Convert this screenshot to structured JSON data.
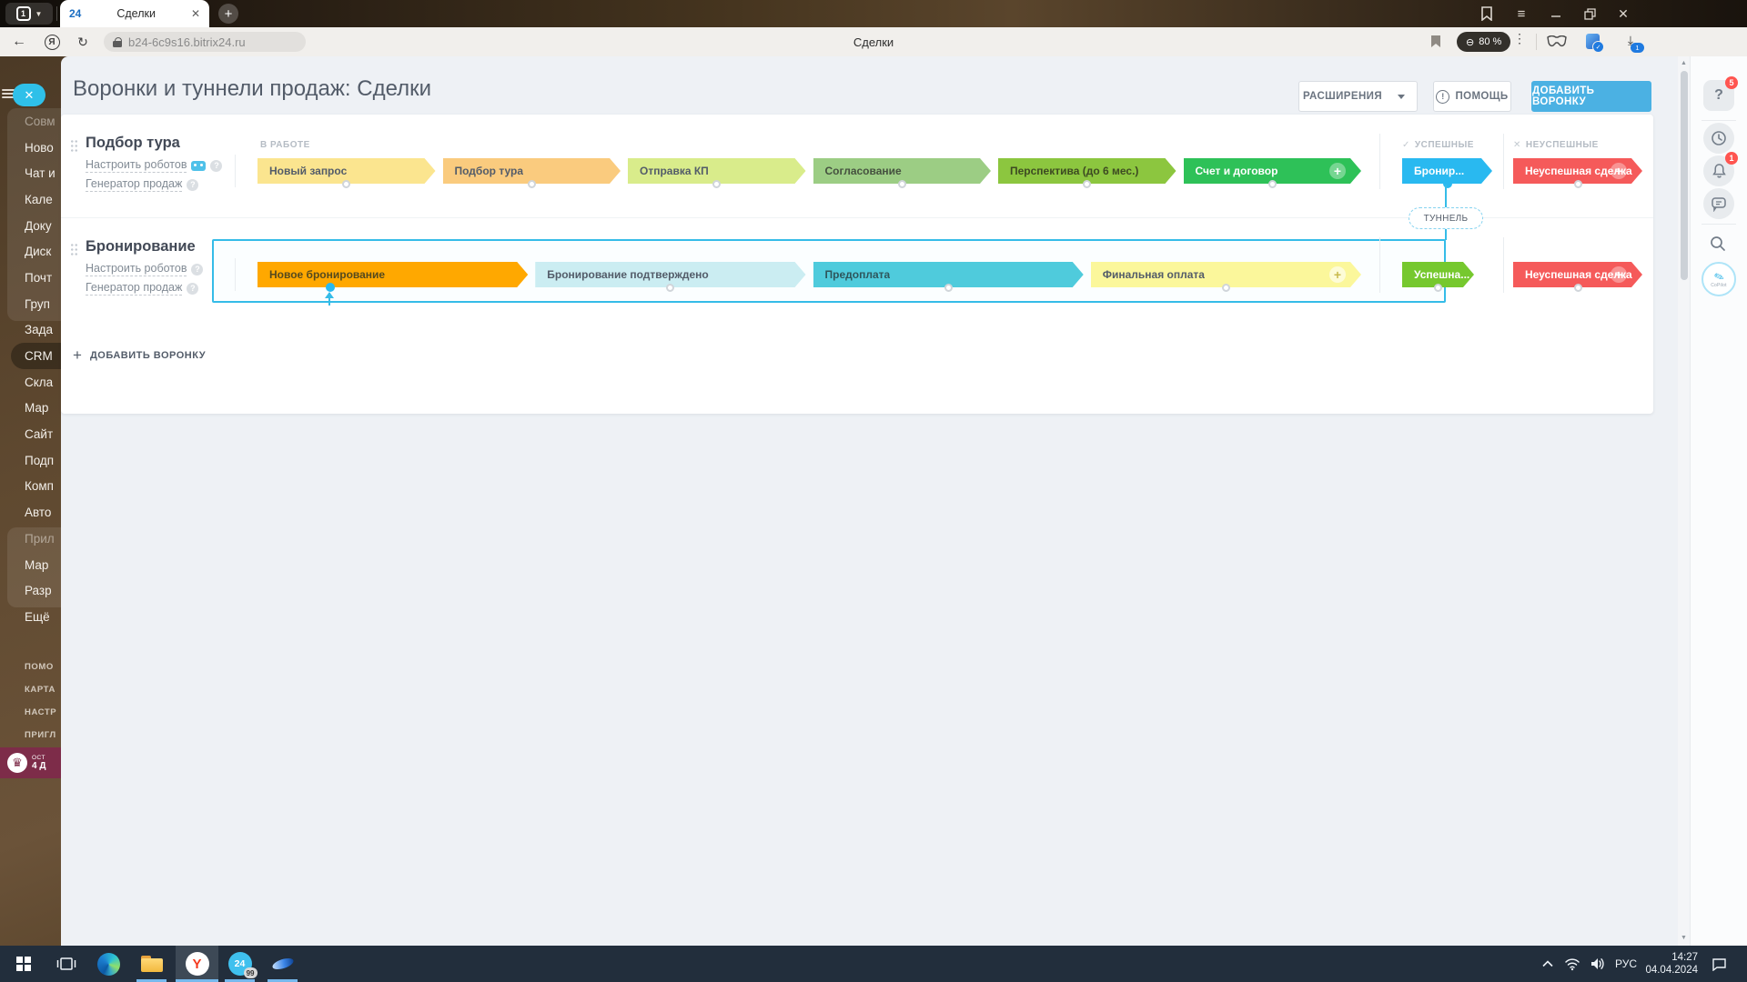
{
  "colors": {
    "accent": "#4BB1E3",
    "tunnel": "#35BCE8"
  },
  "browser": {
    "tab_count": "1",
    "tab_favicon": "24",
    "tab_title": "Сделки",
    "url": "b24-6c9s16.bitrix24.ru",
    "page_center_title": "Сделки",
    "zoom_label": "80 %",
    "downloads_badge": "1"
  },
  "sidebar": {
    "items": [
      {
        "label": "Совм",
        "muted": true
      },
      {
        "label": "Ново"
      },
      {
        "label": "Чат и"
      },
      {
        "label": "Кале"
      },
      {
        "label": "Доку"
      },
      {
        "label": "Диск"
      },
      {
        "label": "Почт"
      },
      {
        "label": "Груп"
      },
      {
        "label": "Зада"
      },
      {
        "label": "CRM",
        "active": true
      },
      {
        "label": "Скла"
      },
      {
        "label": "Мар"
      },
      {
        "label": "Сайт"
      },
      {
        "label": "Подп"
      },
      {
        "label": "Комп"
      },
      {
        "label": "Авто"
      },
      {
        "label": "Прил",
        "muted": true
      },
      {
        "label": "Мар"
      },
      {
        "label": "Разр"
      },
      {
        "label": "Ещё"
      }
    ],
    "footer": [
      "ПОМО",
      "КАРТА",
      "НАСТР",
      "ПРИГЛ"
    ],
    "trial_line1": "ОСТ",
    "trial_line2": "4 Д"
  },
  "page": {
    "title": "Воронки и туннели продаж: Сделки",
    "extensions_button": "РАСШИРЕНИЯ",
    "help_button": "ПОМОЩЬ",
    "add_button": "ДОБАВИТЬ ВОРОНКУ",
    "help_icon": "!",
    "columns": {
      "in_work": "В РАБОТЕ",
      "success": "УСПЕШНЫЕ",
      "fail": "НЕУСПЕШНЫЕ"
    },
    "robots_link": "Настроить роботов",
    "generator_link": "Генератор продаж",
    "tunnel_label": "ТУННЕЛЬ",
    "add_funnel_link": "ДОБАВИТЬ ВОРОНКУ",
    "help_badge": "5",
    "bell_badge": "1",
    "copilot_label": "CoPilot"
  },
  "funnels": [
    {
      "name": "Подбор тура",
      "stages": [
        {
          "label": "Новый запрос",
          "bg": "#FBE58F",
          "color": "#535C69"
        },
        {
          "label": "Подбор тура",
          "bg": "#FACB7E",
          "color": "#535C69"
        },
        {
          "label": "Отправка КП",
          "bg": "#D9EC8B",
          "color": "#535C69"
        },
        {
          "label": "Согласование",
          "bg": "#9CCD84",
          "color": "#45513F"
        },
        {
          "label": "Перспектива (до 6 мес.)",
          "bg": "#8CC63F",
          "color": "#3D4A22"
        },
        {
          "label": "Счет и договор",
          "bg": "#2EC158",
          "color": "#FFFFFF",
          "plus": true
        }
      ],
      "success": [
        {
          "label": "Бронир...",
          "bg": "#29B9F0",
          "color": "#FFFFFF",
          "dot": "blue"
        }
      ],
      "fail": [
        {
          "label": "Неуспешная сделка",
          "bg": "#F55A5A",
          "color": "#FFFFFF",
          "plus": true
        }
      ]
    },
    {
      "name": "Бронирование",
      "stages": [
        {
          "label": "Новое бронирование",
          "bg": "#FFA800",
          "color": "#554A1E",
          "dot": "blue-arrow"
        },
        {
          "label": "Бронирование подтверждено",
          "bg": "#CBEDF2",
          "color": "#535C69"
        },
        {
          "label": "Предоплата",
          "bg": "#4FCBDC",
          "color": "#2E565C"
        },
        {
          "label": "Финальная оплата",
          "bg": "#FBF79B",
          "color": "#535C69",
          "plus": true,
          "plus_muted": true
        }
      ],
      "success": [
        {
          "label": "Успешна...",
          "bg": "#76C82E",
          "color": "#FFFFFF"
        }
      ],
      "fail": [
        {
          "label": "Неуспешная сделка",
          "bg": "#F55A5A",
          "color": "#FFFFFF",
          "plus": true
        }
      ]
    }
  ],
  "taskbar": {
    "lang": "РУС",
    "time": "14:27",
    "date": "04.04.2024",
    "b24_badge": "99"
  }
}
